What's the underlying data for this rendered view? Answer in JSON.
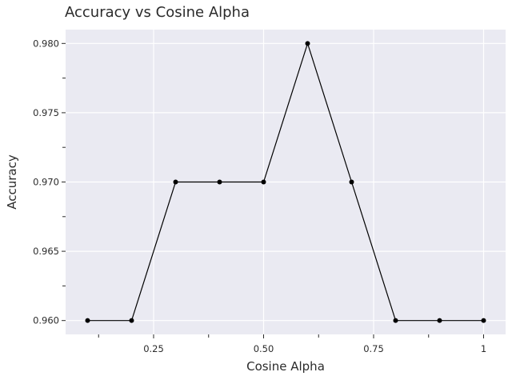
{
  "chart_data": {
    "type": "line",
    "title": "Accuracy vs Cosine Alpha",
    "xlabel": "Cosine Alpha",
    "ylabel": "Accuracy",
    "x": [
      0.1,
      0.2,
      0.3,
      0.4,
      0.5,
      0.6,
      0.7,
      0.8,
      0.9,
      1.0
    ],
    "series": [
      {
        "values": [
          0.96,
          0.96,
          0.97,
          0.97,
          0.97,
          0.98,
          0.97,
          0.96,
          0.96,
          0.96
        ]
      }
    ],
    "xlim": [
      0.05,
      1.05
    ],
    "ylim": [
      0.959,
      0.981
    ],
    "x_ticks": [
      0.25,
      0.5,
      0.75,
      1.0
    ],
    "x_tick_labels": [
      "0.25",
      "0.50",
      "0.75",
      "1"
    ],
    "x_minor_ticks": [
      0.125,
      0.375,
      0.625,
      0.875
    ],
    "y_ticks": [
      0.96,
      0.965,
      0.97,
      0.975,
      0.98
    ],
    "y_tick_labels": [
      "0.960",
      "0.965",
      "0.970",
      "0.975",
      "0.980"
    ],
    "y_minor_ticks": [
      0.9625,
      0.9675,
      0.9725,
      0.9775
    ],
    "grid": true,
    "colors": {
      "panel_background": "#eaeaf2",
      "grid": "#ffffff",
      "line": "#000000",
      "marker": "#000000",
      "tick": "#2b2b2b"
    }
  }
}
